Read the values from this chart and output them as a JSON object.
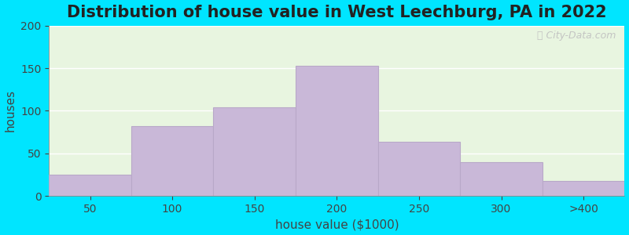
{
  "title": "Distribution of house value in West Leechburg, PA in 2022",
  "xlabel": "house value ($1000)",
  "ylabel": "houses",
  "bar_labels": [
    "50",
    "100",
    "150",
    "200",
    "250",
    "300",
    ">400"
  ],
  "bar_values": [
    25,
    82,
    104,
    153,
    64,
    40,
    18
  ],
  "bar_color": "#c9b8d8",
  "bar_edge_color": "#b8a8c8",
  "ylim": [
    0,
    200
  ],
  "yticks": [
    0,
    50,
    100,
    150,
    200
  ],
  "bg_color": "#e8f5e0",
  "outer_background": "#00e5ff",
  "title_fontsize": 15,
  "axis_label_fontsize": 11,
  "tick_fontsize": 10,
  "watermark": "City-Data.com",
  "grid_color": "#ffffff",
  "spine_color": "#888888"
}
